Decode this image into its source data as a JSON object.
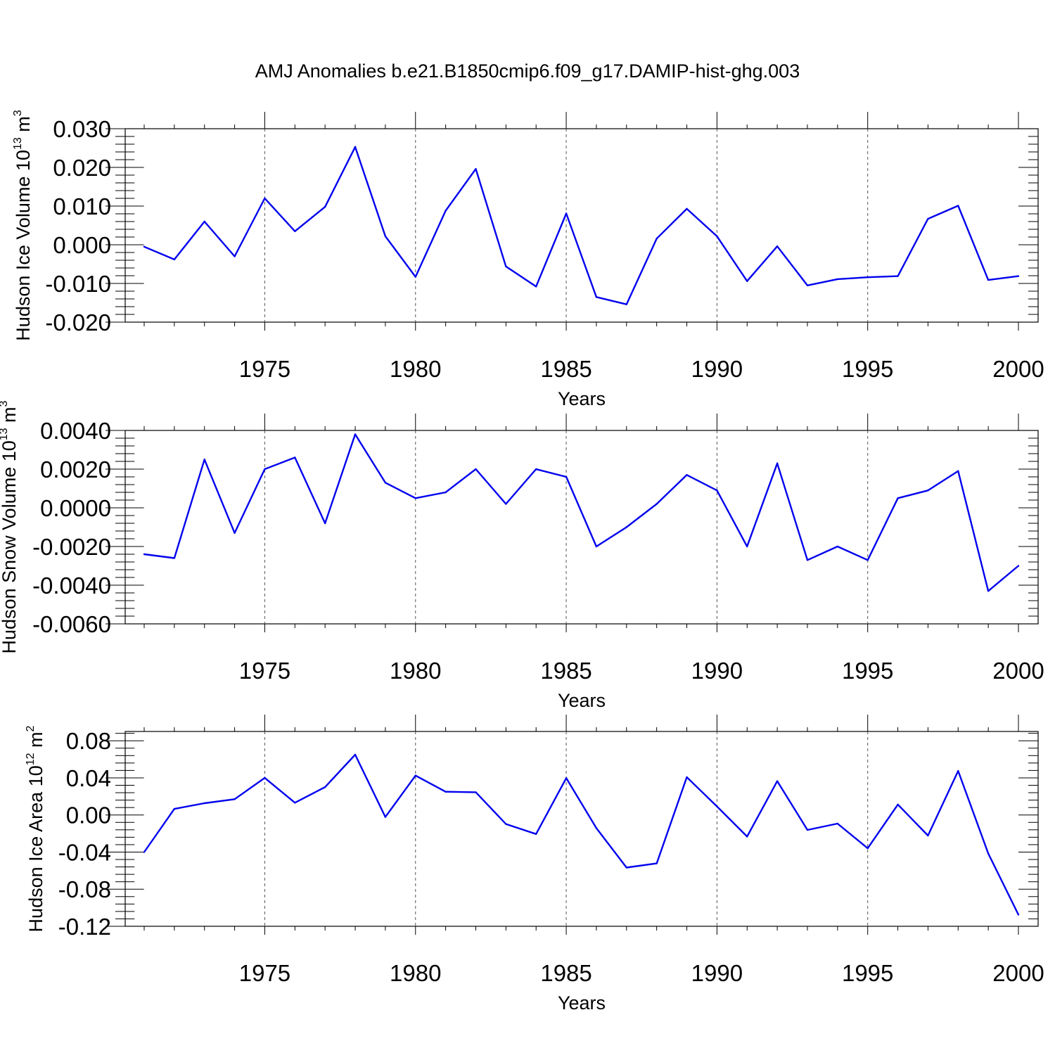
{
  "title": "AMJ Anomalies b.e21.B1850cmip6.f09_g17.DAMIP-hist-ghg.003",
  "chart_data": [
    {
      "type": "line",
      "title": "",
      "ylabel": "Hudson Ice Volume 10",
      "ylabel_exp": "13",
      "ylabel_unit": " m",
      "ylabel_unit_exp": "3",
      "xlabel": "Years",
      "xlim": [
        1971,
        2000
      ],
      "ylim": [
        -0.02,
        0.03
      ],
      "yticks": [
        -0.02,
        -0.01,
        0.0,
        0.01,
        0.02,
        0.03
      ],
      "ytick_labels": [
        "-0.020",
        "-0.010",
        "0.000",
        "0.010",
        "0.020",
        "0.030"
      ],
      "xticks": [
        1975,
        1980,
        1985,
        1990,
        1995,
        2000
      ],
      "xtick_labels": [
        "1975",
        "1980",
        "1985",
        "1990",
        "1995",
        "2000"
      ],
      "grid_x": [
        1975,
        1980,
        1985,
        1990,
        1995
      ],
      "line_color": "#0000ee",
      "x": [
        1971,
        1972,
        1973,
        1974,
        1975,
        1976,
        1977,
        1978,
        1979,
        1980,
        1981,
        1982,
        1983,
        1984,
        1985,
        1986,
        1987,
        1988,
        1989,
        1990,
        1991,
        1992,
        1993,
        1994,
        1995,
        1996,
        1997,
        1998,
        1999,
        2000
      ],
      "y": [
        -0.0005,
        -0.0038,
        0.006,
        -0.003,
        0.012,
        0.0035,
        0.0098,
        0.0253,
        0.0022,
        -0.0083,
        0.0088,
        0.0196,
        -0.0056,
        -0.0108,
        0.0081,
        -0.0135,
        -0.0154,
        0.0016,
        0.0093,
        0.0022,
        -0.0094,
        -0.0004,
        -0.0105,
        -0.0089,
        -0.0084,
        -0.0081,
        0.0067,
        0.0101,
        -0.0091,
        -0.0081
      ]
    },
    {
      "type": "line",
      "title": "",
      "ylabel": "Hudson Snow Volume 10",
      "ylabel_exp": "13",
      "ylabel_unit": " m",
      "ylabel_unit_exp": "3",
      "xlabel": "Years",
      "xlim": [
        1971,
        2000
      ],
      "ylim": [
        -0.006,
        0.004
      ],
      "yticks": [
        -0.006,
        -0.004,
        -0.002,
        0.0,
        0.002,
        0.004
      ],
      "ytick_labels": [
        "-0.0060",
        "-0.0040",
        "-0.0020",
        "0.0000",
        "0.0020",
        "0.0040"
      ],
      "xticks": [
        1975,
        1980,
        1985,
        1990,
        1995,
        2000
      ],
      "xtick_labels": [
        "1975",
        "1980",
        "1985",
        "1990",
        "1995",
        "2000"
      ],
      "grid_x": [
        1975,
        1980,
        1985,
        1990,
        1995
      ],
      "line_color": "#0000ee",
      "x": [
        1971,
        1972,
        1973,
        1974,
        1975,
        1976,
        1977,
        1978,
        1979,
        1980,
        1981,
        1982,
        1983,
        1984,
        1985,
        1986,
        1987,
        1988,
        1989,
        1990,
        1991,
        1992,
        1993,
        1994,
        1995,
        1996,
        1997,
        1998,
        1999,
        2000
      ],
      "y": [
        -0.0024,
        -0.0026,
        0.0025,
        -0.0013,
        0.002,
        0.0026,
        -0.0008,
        0.0038,
        0.0013,
        0.0005,
        0.0008,
        0.002,
        0.0002,
        0.002,
        0.0016,
        -0.002,
        -0.001,
        0.0002,
        0.0017,
        0.0009,
        -0.002,
        0.0023,
        -0.0027,
        -0.002,
        -0.0027,
        0.0005,
        0.0009,
        0.0019,
        -0.0043,
        -0.003
      ]
    },
    {
      "type": "line",
      "title": "",
      "ylabel": "Hudson Ice Area 10",
      "ylabel_exp": "12",
      "ylabel_unit": " m",
      "ylabel_unit_exp": "2",
      "xlabel": "Years",
      "xlim": [
        1971,
        2000
      ],
      "ylim": [
        -0.12,
        0.09
      ],
      "yticks": [
        -0.12,
        -0.08,
        -0.04,
        0.0,
        0.04,
        0.08
      ],
      "ytick_labels": [
        "-0.12",
        "-0.08",
        "-0.04",
        "0.00",
        "0.04",
        "0.08"
      ],
      "xticks": [
        1975,
        1980,
        1985,
        1990,
        1995,
        2000
      ],
      "xtick_labels": [
        "1975",
        "1980",
        "1985",
        "1990",
        "1995",
        "2000"
      ],
      "grid_x": [
        1975,
        1980,
        1985,
        1990,
        1995
      ],
      "line_color": "#0000ee",
      "x": [
        1971,
        1972,
        1973,
        1974,
        1975,
        1976,
        1977,
        1978,
        1979,
        1980,
        1981,
        1982,
        1983,
        1984,
        1985,
        1986,
        1987,
        1988,
        1989,
        1990,
        1991,
        1992,
        1993,
        1994,
        1995,
        1996,
        1997,
        1998,
        1999,
        2000
      ],
      "y": [
        -0.04,
        0.0065,
        0.0127,
        0.017,
        0.04,
        0.0132,
        0.03,
        0.065,
        -0.0022,
        0.0425,
        0.025,
        0.0245,
        -0.0098,
        -0.0205,
        0.0397,
        -0.0142,
        -0.0567,
        -0.0522,
        0.0407,
        0.0092,
        -0.0233,
        0.0365,
        -0.0161,
        -0.0093,
        -0.0359,
        0.0112,
        -0.0222,
        0.0475,
        -0.0415,
        -0.1075
      ]
    }
  ]
}
